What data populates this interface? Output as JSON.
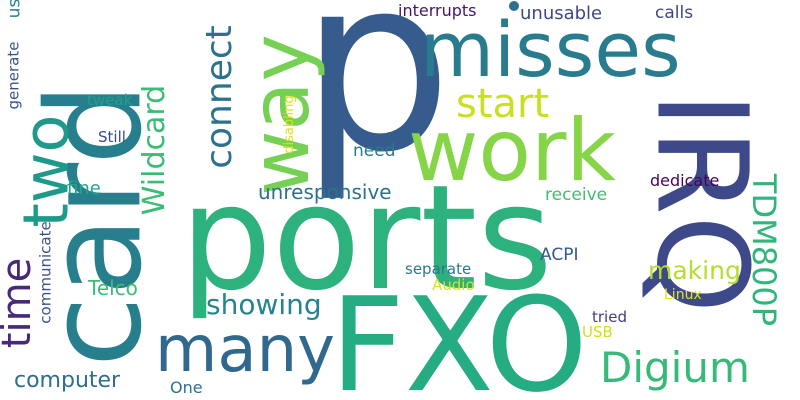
{
  "words": [
    {
      "text": "p",
      "color": "#365c8d"
    },
    {
      "text": "ports",
      "color": "#2db27d"
    },
    {
      "text": "card",
      "color": "#277f8e"
    },
    {
      "text": "FXO",
      "color": "#25ac82"
    },
    {
      "text": "IRQ",
      "color": "#3e4989"
    },
    {
      "text": "misses",
      "color": "#287c8e"
    },
    {
      "text": "work",
      "color": "#86d549"
    },
    {
      "text": "way",
      "color": "#75d054"
    },
    {
      "text": "many",
      "color": "#31688e"
    },
    {
      "text": "two",
      "color": "#1f9a8a"
    },
    {
      "text": "time",
      "color": "#482878"
    },
    {
      "text": "connect",
      "color": "#2c728e"
    },
    {
      "text": "Wildcard",
      "color": "#3bbb75"
    },
    {
      "text": "Digium",
      "color": "#38b977"
    },
    {
      "text": "TDM800P",
      "color": "#31b57b"
    },
    {
      "text": "start",
      "color": "#c8e020"
    },
    {
      "text": "showing",
      "color": "#25848e"
    },
    {
      "text": "making",
      "color": "#b5de2b"
    },
    {
      "text": "computer",
      "color": "#2e6f8e"
    },
    {
      "text": "unresponsive",
      "color": "#2c728e"
    },
    {
      "text": "Telco",
      "color": "#3dbc74"
    },
    {
      "text": "unusable",
      "color": "#404588"
    },
    {
      "text": "interrupts",
      "color": "#481668"
    },
    {
      "text": "calls",
      "color": "#3f4788"
    },
    {
      "text": "receive",
      "color": "#40bd72"
    },
    {
      "text": "dedicate",
      "color": "#450559"
    },
    {
      "text": "fine",
      "color": "#21a685"
    },
    {
      "text": "need",
      "color": "#297b8e"
    },
    {
      "text": "ACPI",
      "color": "#375a8c"
    },
    {
      "text": "separate",
      "color": "#2a788e"
    },
    {
      "text": "Audio",
      "color": "#d8e219"
    },
    {
      "text": "tried",
      "color": "#443a83"
    },
    {
      "text": "Linux",
      "color": "#e2e418"
    },
    {
      "text": "USB",
      "color": "#d0e11c"
    },
    {
      "text": "One",
      "color": "#2d708e"
    },
    {
      "text": "tweak",
      "color": "#1fa088"
    },
    {
      "text": "Still",
      "color": "#3e4a89"
    },
    {
      "text": "communicate",
      "color": "#3b528b"
    },
    {
      "text": "generate",
      "color": "#39558c"
    },
    {
      "text": "disabling",
      "color": "#dde318"
    },
    {
      "text": "us",
      "color": "#26818e"
    }
  ],
  "dot_color": "#2c728e"
}
